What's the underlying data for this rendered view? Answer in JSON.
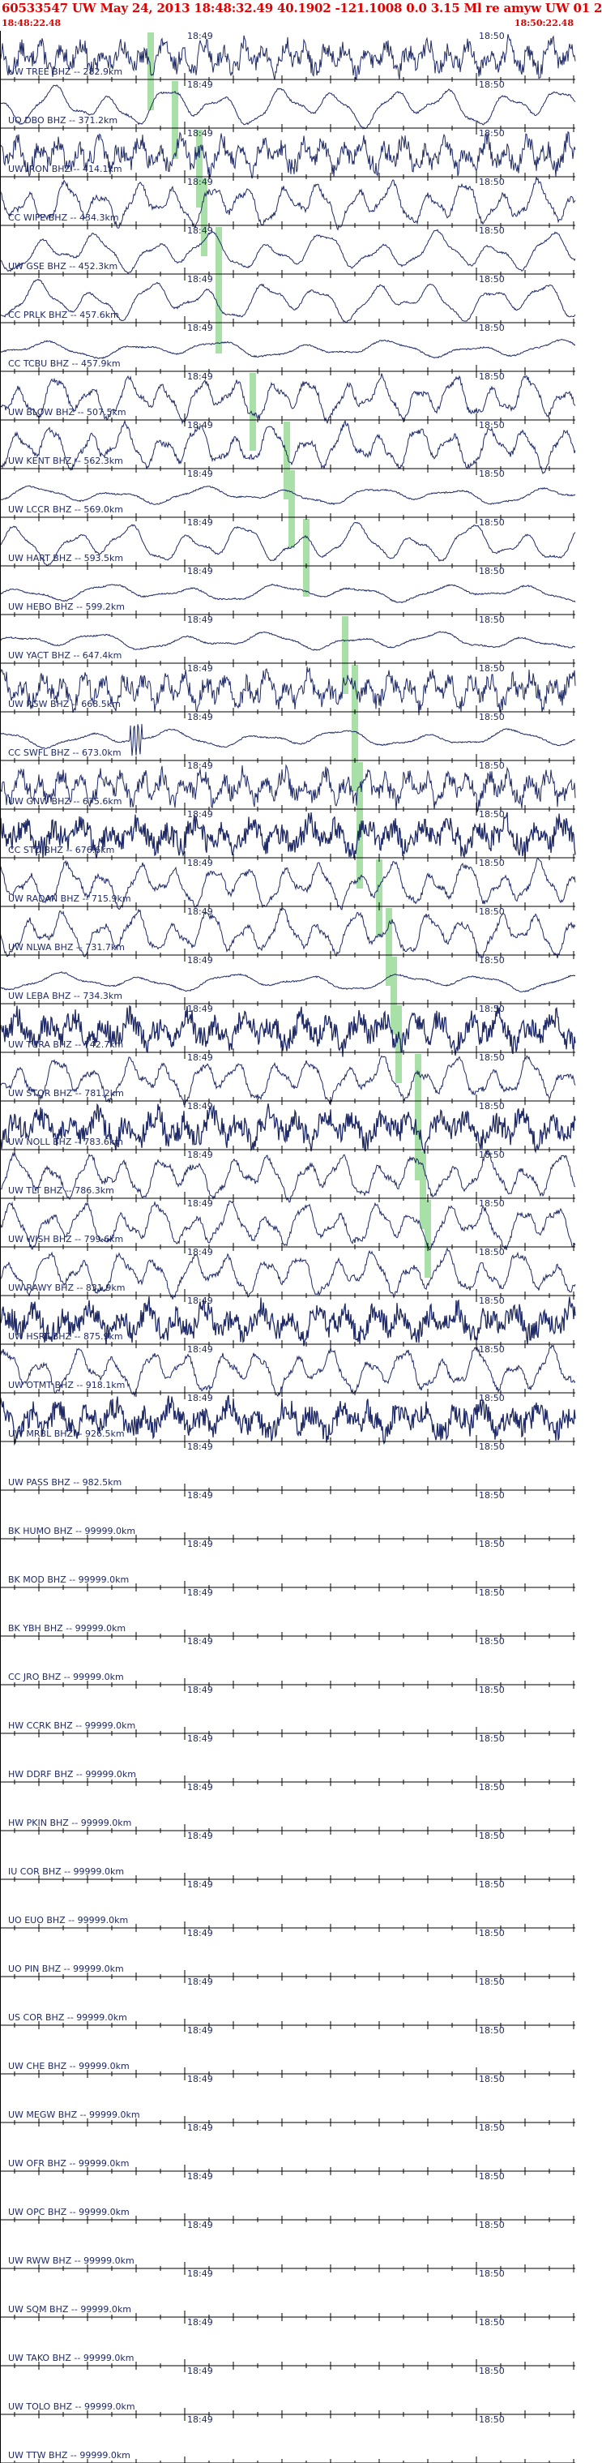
{
  "header": {
    "title": "60533547 UW May 24, 2013 18:48:32.49   40.1902 -121.1008  0.0 3.15 Ml re amyw UW 01   2",
    "start_time": "18:48:22.48",
    "end_time": "18:50:22.48"
  },
  "colors": {
    "header": "#e00000",
    "trace": "#1f2a66",
    "pick": "#a8e0a8",
    "axis": "#000000"
  },
  "chart_data": {
    "type": "line",
    "title": "60533547 UW May 24, 2013 18:48:32.49   40.1902 -121.1008  0.0 3.15 Ml re amyw UW 01   2",
    "xlabel": "",
    "ylabel": "",
    "time_ticks": [
      "18:49",
      "18:50"
    ],
    "series": [
      {
        "name": "UW TREE BHZ -- 282.9km",
        "pick": "18:48:53",
        "kind": "noise"
      },
      {
        "name": "UO DBO BHZ -- 371.2km",
        "pick": "18:48:58",
        "kind": "smooth"
      },
      {
        "name": "UW IRON BHZ -- 414.1km",
        "pick": "18:49:03",
        "kind": "noise"
      },
      {
        "name": "CC WIFE BHZ -- 434.3km",
        "pick": "18:49:04",
        "kind": "wave"
      },
      {
        "name": "UW GSE BHZ -- 452.3km",
        "pick": "18:49:07",
        "kind": "smooth"
      },
      {
        "name": "CC PRLK BHZ -- 457.6km",
        "pick": "18:49:07",
        "kind": "smooth"
      },
      {
        "name": "CC TCBU BHZ -- 457.9km",
        "pick": "",
        "kind": "flat"
      },
      {
        "name": "UW BLOW BHZ -- 507.5km",
        "pick": "18:49:14",
        "kind": "wave"
      },
      {
        "name": "UW KENT BHZ -- 562.3km",
        "pick": "18:49:21",
        "kind": "wave"
      },
      {
        "name": "UW LCCR BHZ -- 569.0km",
        "pick": "18:49:22",
        "kind": "flat"
      },
      {
        "name": "UW HART BHZ -- 593.5km",
        "pick": "18:49:25",
        "kind": "smooth"
      },
      {
        "name": "UW HEBO BHZ -- 599.2km",
        "pick": "",
        "kind": "flat"
      },
      {
        "name": "UW YACT BHZ -- 647.4km",
        "pick": "18:49:33",
        "kind": "flat"
      },
      {
        "name": "UW PGW BHZ -- 668.5km",
        "pick": "18:49:35",
        "kind": "noise"
      },
      {
        "name": "CC SWFL BHZ -- 673.0km",
        "pick": "18:49:35",
        "kind": "flat"
      },
      {
        "name": "UW GNW BHZ -- 675.6km",
        "pick": "18:49:36",
        "kind": "noise"
      },
      {
        "name": "CC STD BHZ -- 676.6km",
        "pick": "18:49:36",
        "kind": "heavy"
      },
      {
        "name": "UW RADAN BHZ -- 715.9km",
        "pick": "18:49:40",
        "kind": "wave"
      },
      {
        "name": "UW NLWA BHZ -- 731.7km",
        "pick": "18:49:42",
        "kind": "wave"
      },
      {
        "name": "UW LEBA BHZ -- 734.3km",
        "pick": "18:49:43",
        "kind": "flat"
      },
      {
        "name": "UW TURA BHZ -- 742.7km",
        "pick": "18:49:44",
        "kind": "heavy"
      },
      {
        "name": "UW STOR BHZ -- 781.2km",
        "pick": "18:49:48",
        "kind": "wave"
      },
      {
        "name": "UW NOLL BHZ -- 783.6km",
        "pick": "18:49:48",
        "kind": "heavy"
      },
      {
        "name": "UW TLT BHZ -- 786.3km",
        "pick": "18:49:49",
        "kind": "wave"
      },
      {
        "name": "UW WISH BHZ -- 799.6km",
        "pick": "18:49:50",
        "kind": "wave"
      },
      {
        "name": "UW RAWY BHZ -- 831.9km",
        "pick": "",
        "kind": "wave"
      },
      {
        "name": "UW HSRT BHZ -- 875.9km",
        "pick": "",
        "kind": "heavy"
      },
      {
        "name": "UW OTMT BHZ -- 918.1km",
        "pick": "",
        "kind": "wave"
      },
      {
        "name": "UW MRBL BHZ -- 926.5km",
        "pick": "",
        "kind": "heavy"
      },
      {
        "name": "UW PASS BHZ -- 982.5km",
        "pick": "",
        "kind": "empty"
      },
      {
        "name": "BK HUMO BHZ -- 99999.0km",
        "pick": "",
        "kind": "empty"
      },
      {
        "name": "BK MOD BHZ -- 99999.0km",
        "pick": "",
        "kind": "empty"
      },
      {
        "name": "BK YBH BHZ -- 99999.0km",
        "pick": "",
        "kind": "empty"
      },
      {
        "name": "CC JRO BHZ -- 99999.0km",
        "pick": "",
        "kind": "empty"
      },
      {
        "name": "HW CCRK BHZ -- 99999.0km",
        "pick": "",
        "kind": "empty"
      },
      {
        "name": "HW DDRF BHZ -- 99999.0km",
        "pick": "",
        "kind": "empty"
      },
      {
        "name": "HW PKIN BHZ -- 99999.0km",
        "pick": "",
        "kind": "empty"
      },
      {
        "name": "IU COR BHZ -- 99999.0km",
        "pick": "",
        "kind": "empty"
      },
      {
        "name": "UO EUO BHZ -- 99999.0km",
        "pick": "",
        "kind": "empty"
      },
      {
        "name": "UO PIN BHZ -- 99999.0km",
        "pick": "",
        "kind": "empty"
      },
      {
        "name": "US COR BHZ -- 99999.0km",
        "pick": "",
        "kind": "empty"
      },
      {
        "name": "UW CHE BHZ -- 99999.0km",
        "pick": "",
        "kind": "empty"
      },
      {
        "name": "UW MEGW BHZ -- 99999.0km",
        "pick": "",
        "kind": "empty"
      },
      {
        "name": "UW OFR BHZ -- 99999.0km",
        "pick": "",
        "kind": "empty"
      },
      {
        "name": "UW OPC BHZ -- 99999.0km",
        "pick": "",
        "kind": "empty"
      },
      {
        "name": "UW RWW BHZ -- 99999.0km",
        "pick": "",
        "kind": "empty"
      },
      {
        "name": "UW SQM BHZ -- 99999.0km",
        "pick": "",
        "kind": "empty"
      },
      {
        "name": "UW TAKO BHZ -- 99999.0km",
        "pick": "",
        "kind": "empty"
      },
      {
        "name": "UW TOLO BHZ -- 99999.0km",
        "pick": "",
        "kind": "empty"
      },
      {
        "name": "UW TTW BHZ -- 99999.0km",
        "pick": "",
        "kind": "empty"
      }
    ]
  }
}
